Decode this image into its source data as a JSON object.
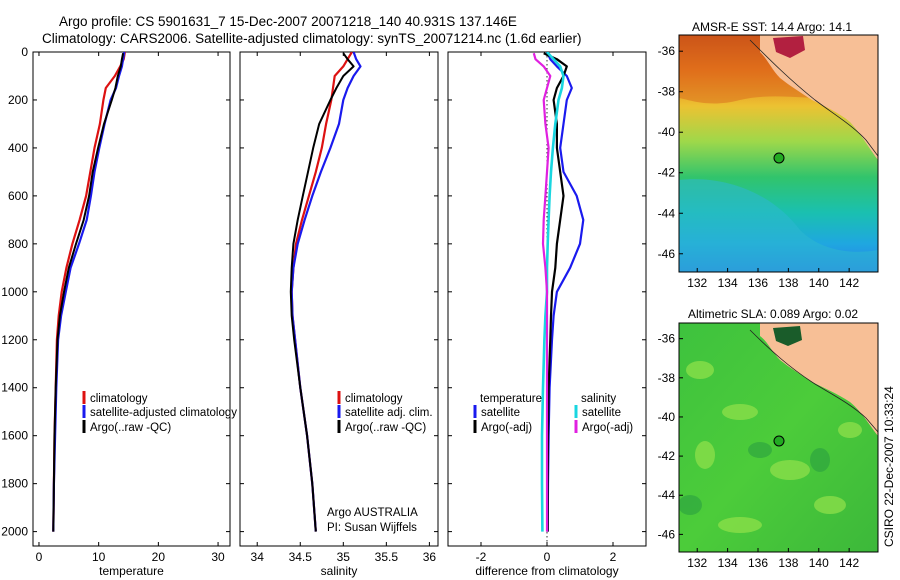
{
  "title": {
    "line1": "Argo profile: CS 5901631_7 15-Dec-2007 20071218_140 40.931S 137.146E",
    "line2": "Climatology: CARS2006. Satellite-adjusted climatology: synTS_20071214.nc (1.6d earlier)"
  },
  "colors": {
    "climatology": "#dd1111",
    "satellite": "#1a1aee",
    "argo": "#000000",
    "sal_satellite": "#19d6e0",
    "sal_argo": "#e020e0",
    "land": "#f7bf96",
    "marker": "#22aa22"
  },
  "legends": {
    "temperature": [
      "climatology",
      "satellite-adjusted climatology",
      "Argo(..raw -QC)"
    ],
    "salinity": [
      "climatology",
      "satellite adj. clim.",
      "Argo(..raw -QC)"
    ],
    "difference": {
      "temp_header": "temperature",
      "temp_items": [
        "satellite",
        "Argo(-adj)"
      ],
      "sal_header": "salinity",
      "sal_items": [
        "satellite",
        "Argo(-adj)"
      ]
    }
  },
  "notes": {
    "line1": "Argo AUSTRALIA",
    "line2": "PI: Susan Wijffels"
  },
  "maps": {
    "sst_title": "AMSR-E SST: 14.4 Argo: 14.1",
    "sla_title": "Altimetric SLA: 0.089 Argo: 0.02",
    "x_ticks": [
      "132",
      "134",
      "136",
      "138",
      "140",
      "142"
    ],
    "y_ticks": [
      "-36",
      "-38",
      "-40",
      "-42",
      "-44",
      "-46"
    ],
    "float_position": {
      "lon": 137.146,
      "lat": -40.931
    }
  },
  "side_label": "CSIRO 22-Dec-2007 10:33:24",
  "chart_data": [
    {
      "type": "line",
      "xlabel": "temperature",
      "ylabel": "",
      "xlim": [
        -1,
        32
      ],
      "ylim": [
        2060,
        0
      ],
      "x_ticks": [
        0,
        10,
        20,
        30
      ],
      "y_ticks": [
        0,
        200,
        400,
        600,
        800,
        1000,
        1200,
        1400,
        1600,
        1800,
        2000
      ],
      "series": [
        {
          "name": "climatology",
          "x": [
            14.4,
            14.2,
            13.6,
            12.7,
            11.2,
            10.8,
            10.2,
            9.3,
            8.6,
            7.9,
            6.8,
            5.6,
            4.6,
            3.8,
            3.3,
            3.0,
            2.8,
            2.6,
            2.5,
            2.4
          ],
          "y": [
            0,
            30,
            60,
            100,
            150,
            200,
            300,
            400,
            500,
            600,
            700,
            800,
            900,
            1000,
            1100,
            1200,
            1400,
            1600,
            1800,
            2000
          ]
        },
        {
          "name": "satellite-adjusted climatology",
          "x": [
            14.3,
            14.1,
            13.9,
            13.4,
            12.9,
            12.0,
            11.0,
            10.1,
            9.3,
            8.7,
            8.0,
            6.7,
            5.3,
            4.5,
            3.7,
            3.2,
            2.9,
            2.7,
            2.5,
            2.4
          ],
          "y": [
            0,
            30,
            60,
            100,
            150,
            200,
            300,
            400,
            500,
            600,
            700,
            800,
            900,
            1000,
            1100,
            1200,
            1400,
            1600,
            1800,
            2000
          ]
        },
        {
          "name": "Argo(..raw -QC)",
          "x": [
            14.1,
            13.9,
            13.7,
            13.2,
            12.8,
            12.2,
            10.9,
            9.9,
            9.0,
            8.4,
            7.5,
            6.2,
            5.0,
            4.2,
            3.5,
            3.1,
            2.8,
            2.6,
            2.5,
            2.4
          ],
          "y": [
            5,
            30,
            60,
            100,
            150,
            200,
            300,
            400,
            500,
            600,
            700,
            800,
            900,
            1000,
            1100,
            1200,
            1400,
            1600,
            1800,
            2000
          ]
        }
      ]
    },
    {
      "type": "line",
      "xlabel": "salinity",
      "ylabel": "",
      "xlim": [
        33.8,
        36.1
      ],
      "ylim": [
        2060,
        0
      ],
      "x_ticks": [
        34,
        34.5,
        35,
        35.5,
        36
      ],
      "y_ticks": [
        0,
        200,
        400,
        600,
        800,
        1000,
        1200,
        1400,
        1600,
        1800,
        2000
      ],
      "series": [
        {
          "name": "climatology",
          "x": [
            35.1,
            35.05,
            35.0,
            34.9,
            34.88,
            34.86,
            34.8,
            34.75,
            34.68,
            34.6,
            34.52,
            34.45,
            34.42,
            34.4,
            34.41,
            34.44,
            34.5,
            34.58,
            34.64,
            34.68
          ],
          "y": [
            0,
            30,
            60,
            100,
            150,
            200,
            300,
            400,
            500,
            600,
            700,
            800,
            900,
            1000,
            1100,
            1200,
            1400,
            1600,
            1800,
            2000
          ]
        },
        {
          "name": "satellite adj. clim.",
          "x": [
            35.12,
            35.15,
            35.2,
            35.12,
            35.05,
            35.0,
            34.95,
            34.85,
            34.74,
            34.64,
            34.55,
            34.47,
            34.42,
            34.4,
            34.41,
            34.44,
            34.5,
            34.58,
            34.64,
            34.68
          ],
          "y": [
            0,
            30,
            60,
            100,
            150,
            200,
            300,
            400,
            500,
            600,
            700,
            800,
            900,
            1000,
            1100,
            1200,
            1400,
            1600,
            1800,
            2000
          ]
        },
        {
          "name": "Argo(..raw -QC)",
          "x": [
            35.0,
            35.05,
            35.12,
            35.0,
            34.92,
            34.85,
            34.72,
            34.65,
            34.59,
            34.53,
            34.47,
            34.42,
            34.4,
            34.39,
            34.4,
            34.43,
            34.5,
            34.58,
            34.64,
            34.68
          ],
          "y": [
            5,
            30,
            60,
            100,
            150,
            200,
            300,
            400,
            500,
            600,
            700,
            800,
            900,
            1000,
            1100,
            1200,
            1400,
            1600,
            1800,
            2000
          ]
        }
      ]
    },
    {
      "type": "line",
      "xlabel": "difference from climatology",
      "ylabel": "",
      "xlim": [
        -3,
        3
      ],
      "ylim": [
        2060,
        0
      ],
      "x_ticks": [
        -2,
        0,
        2
      ],
      "y_ticks": [
        0,
        200,
        400,
        600,
        800,
        1000,
        1200,
        1400,
        1600,
        1800,
        2000
      ],
      "reference_line": 0,
      "series": [
        {
          "name": "temperature satellite",
          "x": [
            0.0,
            0.1,
            0.3,
            0.6,
            0.75,
            0.6,
            0.5,
            0.4,
            0.5,
            0.9,
            1.1,
            1.0,
            0.7,
            0.3,
            0.2,
            0.15,
            0.08,
            0.05,
            0.03,
            0.02
          ],
          "y": [
            0,
            30,
            60,
            100,
            150,
            200,
            300,
            400,
            500,
            600,
            700,
            800,
            900,
            1000,
            1100,
            1200,
            1400,
            1600,
            1800,
            2000
          ]
        },
        {
          "name": "temperature Argo(-adj)",
          "x": [
            -0.1,
            0.3,
            0.6,
            0.5,
            0.3,
            0.2,
            0.3,
            0.3,
            0.4,
            0.5,
            0.4,
            0.3,
            0.25,
            0.15,
            0.12,
            0.1,
            0.05,
            0.03,
            0.02,
            0.02
          ],
          "y": [
            5,
            30,
            60,
            100,
            150,
            200,
            300,
            400,
            500,
            600,
            700,
            800,
            900,
            1000,
            1100,
            1200,
            1400,
            1600,
            1800,
            2000
          ]
        },
        {
          "name": "salinity satellite",
          "x": [
            0.0,
            0.2,
            0.4,
            0.5,
            0.45,
            0.35,
            0.25,
            0.18,
            0.12,
            0.08,
            0.05,
            0.02,
            0.0,
            0.0,
            -0.05,
            -0.08,
            -0.12,
            -0.15,
            -0.15,
            -0.14
          ],
          "y": [
            0,
            30,
            60,
            100,
            150,
            200,
            300,
            400,
            500,
            600,
            700,
            800,
            900,
            1000,
            1100,
            1200,
            1400,
            1600,
            1800,
            2000
          ]
        },
        {
          "name": "salinity Argo(-adj)",
          "x": [
            -0.4,
            -0.35,
            -0.1,
            0.1,
            0.0,
            -0.1,
            -0.05,
            0.05,
            0.0,
            -0.05,
            -0.1,
            -0.12,
            -0.05,
            0.0,
            0.0,
            0.0,
            0.0,
            0.0,
            0.0,
            0.0
          ],
          "y": [
            5,
            30,
            60,
            100,
            150,
            200,
            300,
            400,
            500,
            600,
            700,
            800,
            900,
            1000,
            1100,
            1200,
            1400,
            1600,
            1800,
            2000
          ]
        }
      ]
    }
  ]
}
